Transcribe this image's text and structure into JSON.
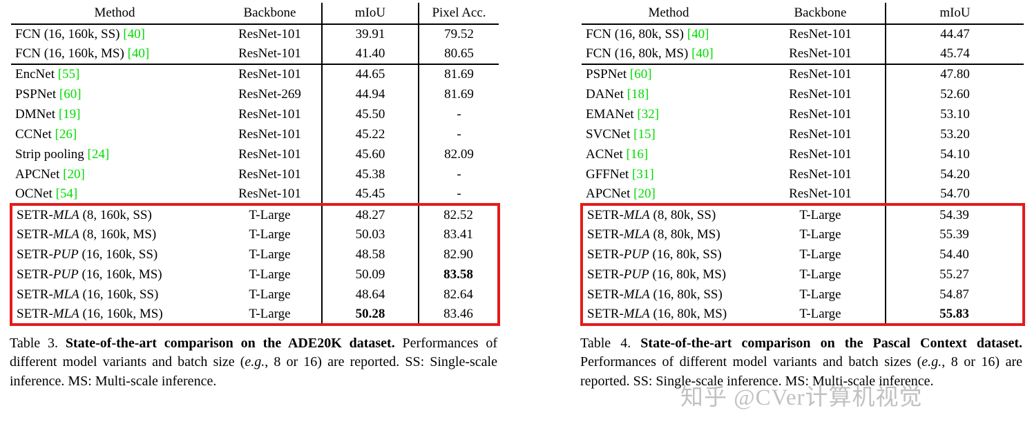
{
  "colors": {
    "ref_green": "#00dc00",
    "highlight_red": "#e31b1c",
    "watermark_gray": "#acacac"
  },
  "watermark": {
    "text": "知乎 @CVer计算机视觉"
  },
  "tables": [
    {
      "name": "ADE20K comparison",
      "headers": [
        "Method",
        "Backbone",
        "mIoU",
        "Pixel Acc."
      ],
      "groups": [
        {
          "highlight": false,
          "rows": [
            {
              "method": [
                {
                  "t": "FCN (16, 160k, SS) "
                },
                {
                  "t": "[40]",
                  "style": "ref"
                }
              ],
              "cells": [
                {
                  "t": "ResNet-101"
                },
                {
                  "t": "39.91"
                },
                {
                  "t": "79.52"
                }
              ]
            },
            {
              "method": [
                {
                  "t": "FCN (16, 160k, MS) "
                },
                {
                  "t": "[40]",
                  "style": "ref"
                }
              ],
              "cells": [
                {
                  "t": "ResNet-101"
                },
                {
                  "t": "41.40"
                },
                {
                  "t": "80.65"
                }
              ]
            }
          ]
        },
        {
          "highlight": false,
          "rows": [
            {
              "method": [
                {
                  "t": "EncNet "
                },
                {
                  "t": "[55]",
                  "style": "ref"
                }
              ],
              "cells": [
                {
                  "t": "ResNet-101"
                },
                {
                  "t": "44.65"
                },
                {
                  "t": "81.69"
                }
              ]
            },
            {
              "method": [
                {
                  "t": "PSPNet "
                },
                {
                  "t": "[60]",
                  "style": "ref"
                }
              ],
              "cells": [
                {
                  "t": "ResNet-269"
                },
                {
                  "t": "44.94"
                },
                {
                  "t": "81.69"
                }
              ]
            },
            {
              "method": [
                {
                  "t": "DMNet "
                },
                {
                  "t": "[19]",
                  "style": "ref"
                }
              ],
              "cells": [
                {
                  "t": "ResNet-101"
                },
                {
                  "t": "45.50"
                },
                {
                  "t": "-"
                }
              ]
            },
            {
              "method": [
                {
                  "t": "CCNet "
                },
                {
                  "t": "[26]",
                  "style": "ref"
                }
              ],
              "cells": [
                {
                  "t": "ResNet-101"
                },
                {
                  "t": "45.22"
                },
                {
                  "t": "-"
                }
              ]
            },
            {
              "method": [
                {
                  "t": "Strip pooling "
                },
                {
                  "t": "[24]",
                  "style": "ref"
                }
              ],
              "cells": [
                {
                  "t": "ResNet-101"
                },
                {
                  "t": "45.60"
                },
                {
                  "t": "82.09"
                }
              ]
            },
            {
              "method": [
                {
                  "t": "APCNet "
                },
                {
                  "t": "[20]",
                  "style": "ref"
                }
              ],
              "cells": [
                {
                  "t": "ResNet-101"
                },
                {
                  "t": "45.38"
                },
                {
                  "t": "-"
                }
              ]
            },
            {
              "method": [
                {
                  "t": "OCNet "
                },
                {
                  "t": "[54]",
                  "style": "ref"
                }
              ],
              "cells": [
                {
                  "t": "ResNet-101"
                },
                {
                  "t": "45.45"
                },
                {
                  "t": "-"
                }
              ]
            }
          ]
        },
        {
          "highlight": true,
          "rows": [
            {
              "method": [
                {
                  "t": "SETR-"
                },
                {
                  "t": "MLA",
                  "style": "italic"
                },
                {
                  "t": " (8, 160k, SS)"
                }
              ],
              "cells": [
                {
                  "t": "T-Large"
                },
                {
                  "t": "48.27"
                },
                {
                  "t": "82.52"
                }
              ]
            },
            {
              "method": [
                {
                  "t": "SETR-"
                },
                {
                  "t": "MLA",
                  "style": "italic"
                },
                {
                  "t": " (8, 160k, MS)"
                }
              ],
              "cells": [
                {
                  "t": "T-Large"
                },
                {
                  "t": "50.03"
                },
                {
                  "t": "83.41"
                }
              ]
            },
            {
              "method": [
                {
                  "t": "SETR-"
                },
                {
                  "t": "PUP",
                  "style": "italic"
                },
                {
                  "t": " (16, 160k, SS)"
                }
              ],
              "cells": [
                {
                  "t": "T-Large"
                },
                {
                  "t": "48.58"
                },
                {
                  "t": "82.90"
                }
              ]
            },
            {
              "method": [
                {
                  "t": "SETR-"
                },
                {
                  "t": "PUP",
                  "style": "italic"
                },
                {
                  "t": " (16, 160k, MS)"
                }
              ],
              "cells": [
                {
                  "t": "T-Large"
                },
                {
                  "t": "50.09"
                },
                {
                  "t": "83.58",
                  "bold": true
                }
              ]
            },
            {
              "method": [
                {
                  "t": "SETR-"
                },
                {
                  "t": "MLA",
                  "style": "italic"
                },
                {
                  "t": " (16, 160k, SS)"
                }
              ],
              "cells": [
                {
                  "t": "T-Large"
                },
                {
                  "t": "48.64"
                },
                {
                  "t": "82.64"
                }
              ]
            },
            {
              "method": [
                {
                  "t": "SETR-"
                },
                {
                  "t": "MLA",
                  "style": "italic"
                },
                {
                  "t": " (16, 160k, MS)"
                }
              ],
              "cells": [
                {
                  "t": "T-Large"
                },
                {
                  "t": "50.28",
                  "bold": true
                },
                {
                  "t": "83.46"
                }
              ]
            }
          ]
        }
      ],
      "caption": [
        {
          "t": "Table 3. "
        },
        {
          "t": "State-of-the-art comparison on the ADE20K dataset.",
          "style": "bold"
        },
        {
          "t": " Performances of different model variants and batch size ("
        },
        {
          "t": "e.g.",
          "style": "italic"
        },
        {
          "t": ", 8 or 16) are reported. SS: Single-scale inference. MS: Multi-scale inference."
        }
      ]
    },
    {
      "name": "Pascal Context comparison",
      "headers": [
        "Method",
        "Backbone",
        "mIoU"
      ],
      "groups": [
        {
          "highlight": false,
          "rows": [
            {
              "method": [
                {
                  "t": "FCN (16, 80k, SS) "
                },
                {
                  "t": "[40]",
                  "style": "ref"
                }
              ],
              "cells": [
                {
                  "t": "ResNet-101"
                },
                {
                  "t": "44.47"
                }
              ]
            },
            {
              "method": [
                {
                  "t": "FCN (16, 80k, MS) "
                },
                {
                  "t": "[40]",
                  "style": "ref"
                }
              ],
              "cells": [
                {
                  "t": "ResNet-101"
                },
                {
                  "t": "45.74"
                }
              ]
            }
          ]
        },
        {
          "highlight": false,
          "rows": [
            {
              "method": [
                {
                  "t": "PSPNet "
                },
                {
                  "t": "[60]",
                  "style": "ref"
                }
              ],
              "cells": [
                {
                  "t": "ResNet-101"
                },
                {
                  "t": "47.80"
                }
              ]
            },
            {
              "method": [
                {
                  "t": "DANet "
                },
                {
                  "t": "[18]",
                  "style": "ref"
                }
              ],
              "cells": [
                {
                  "t": "ResNet-101"
                },
                {
                  "t": "52.60"
                }
              ]
            },
            {
              "method": [
                {
                  "t": "EMANet "
                },
                {
                  "t": "[32]",
                  "style": "ref"
                }
              ],
              "cells": [
                {
                  "t": "ResNet-101"
                },
                {
                  "t": "53.10"
                }
              ]
            },
            {
              "method": [
                {
                  "t": "SVCNet "
                },
                {
                  "t": "[15]",
                  "style": "ref"
                }
              ],
              "cells": [
                {
                  "t": "ResNet-101"
                },
                {
                  "t": "53.20"
                }
              ]
            },
            {
              "method": [
                {
                  "t": "ACNet "
                },
                {
                  "t": "[16]",
                  "style": "ref"
                }
              ],
              "cells": [
                {
                  "t": "ResNet-101"
                },
                {
                  "t": "54.10"
                }
              ]
            },
            {
              "method": [
                {
                  "t": "GFFNet "
                },
                {
                  "t": "[31]",
                  "style": "ref"
                }
              ],
              "cells": [
                {
                  "t": "ResNet-101"
                },
                {
                  "t": "54.20"
                }
              ]
            },
            {
              "method": [
                {
                  "t": "APCNet "
                },
                {
                  "t": "[20]",
                  "style": "ref"
                }
              ],
              "cells": [
                {
                  "t": "ResNet-101"
                },
                {
                  "t": "54.70"
                }
              ]
            }
          ]
        },
        {
          "highlight": true,
          "rows": [
            {
              "method": [
                {
                  "t": "SETR-"
                },
                {
                  "t": "MLA",
                  "style": "italic"
                },
                {
                  "t": " (8, 80k, SS)"
                }
              ],
              "cells": [
                {
                  "t": "T-Large"
                },
                {
                  "t": "54.39"
                }
              ]
            },
            {
              "method": [
                {
                  "t": "SETR-"
                },
                {
                  "t": "MLA",
                  "style": "italic"
                },
                {
                  "t": " (8, 80k, MS)"
                }
              ],
              "cells": [
                {
                  "t": "T-Large"
                },
                {
                  "t": "55.39"
                }
              ]
            },
            {
              "method": [
                {
                  "t": "SETR-"
                },
                {
                  "t": "PUP",
                  "style": "italic"
                },
                {
                  "t": " (16, 80k, SS)"
                }
              ],
              "cells": [
                {
                  "t": "T-Large"
                },
                {
                  "t": "54.40"
                }
              ]
            },
            {
              "method": [
                {
                  "t": "SETR-"
                },
                {
                  "t": "PUP",
                  "style": "italic"
                },
                {
                  "t": " (16, 80k, MS)"
                }
              ],
              "cells": [
                {
                  "t": "T-Large"
                },
                {
                  "t": "55.27"
                }
              ]
            },
            {
              "method": [
                {
                  "t": "SETR-"
                },
                {
                  "t": "MLA",
                  "style": "italic"
                },
                {
                  "t": " (16, 80k, SS)"
                }
              ],
              "cells": [
                {
                  "t": "T-Large"
                },
                {
                  "t": "54.87"
                }
              ]
            },
            {
              "method": [
                {
                  "t": "SETR-"
                },
                {
                  "t": "MLA",
                  "style": "italic"
                },
                {
                  "t": " (16, 80k, MS)"
                }
              ],
              "cells": [
                {
                  "t": "T-Large"
                },
                {
                  "t": "55.83",
                  "bold": true
                }
              ]
            }
          ]
        }
      ],
      "caption": [
        {
          "t": "Table 4. "
        },
        {
          "t": "State-of-the-art comparison on the Pascal Context dataset.",
          "style": "bold"
        },
        {
          "t": " Performances of different model variants and batch sizes ("
        },
        {
          "t": "e.g.",
          "style": "italic"
        },
        {
          "t": ", 8 or 16) are reported. SS: Single-scale inference. MS: Multi-scale inference."
        }
      ]
    }
  ]
}
